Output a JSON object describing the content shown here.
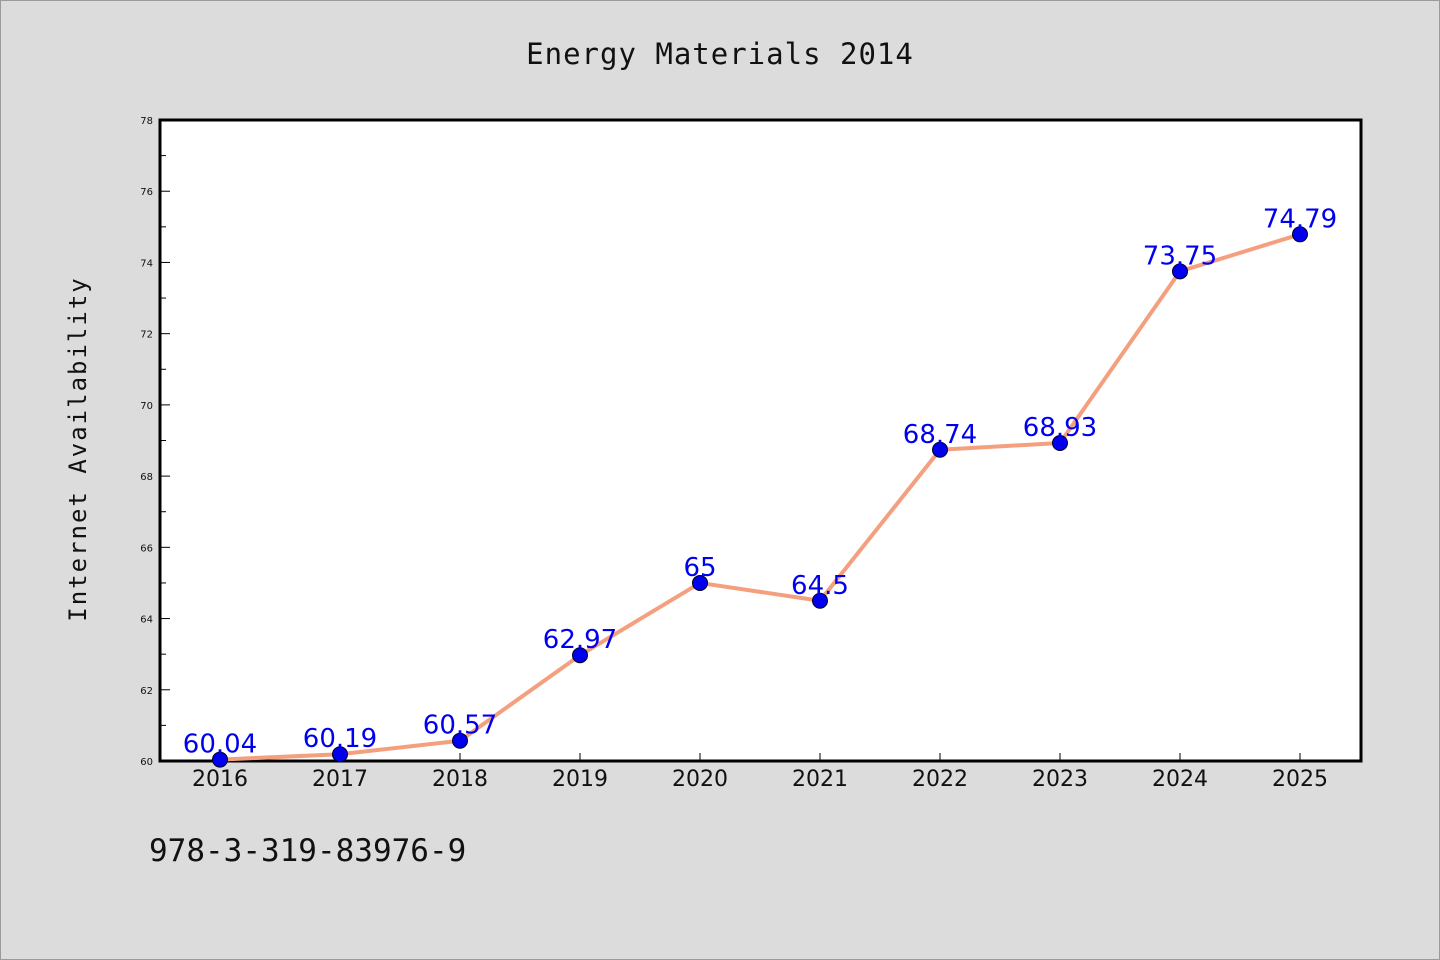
{
  "chart_data": {
    "type": "line",
    "title": "Energy Materials 2014",
    "xlabel": "",
    "ylabel": "Internet Availability",
    "categories": [
      "2016",
      "2017",
      "2018",
      "2019",
      "2020",
      "2021",
      "2022",
      "2023",
      "2024",
      "2025"
    ],
    "series": [
      {
        "values": [
          60.04,
          60.19,
          60.57,
          62.97,
          65,
          64.5,
          68.74,
          68.93,
          73.75,
          74.79
        ],
        "data_labels": [
          "60.04",
          "60.19",
          "60.57",
          "62.97",
          "65",
          "64.5",
          "68.74",
          "68.93",
          "73.75",
          "74.79"
        ],
        "line_color": "#f4a07e",
        "marker_color": "#0000ee"
      }
    ],
    "ylim": [
      60,
      78
    ],
    "yticks": [
      "60",
      "62",
      "64",
      "66",
      "68",
      "70",
      "72",
      "74",
      "76",
      "78"
    ],
    "grid": false,
    "legend": "none"
  },
  "footer": {
    "code": "978-3-319-83976-9"
  }
}
